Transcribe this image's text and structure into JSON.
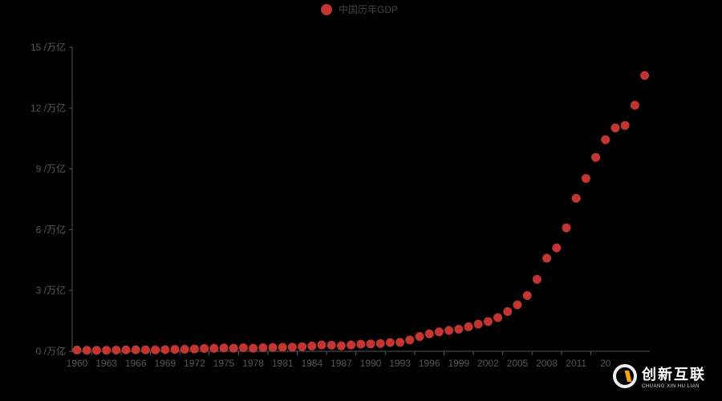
{
  "chart_data": {
    "type": "scatter",
    "title": "",
    "legend": [
      "中国历年GDP"
    ],
    "legend_position": "top-center",
    "xlabel": "",
    "ylabel": "",
    "y_unit": " /万亿",
    "ylim": [
      0,
      15
    ],
    "yticks": [
      "0 /万亿",
      "3 /万亿",
      "6 /万亿",
      "9 /万亿",
      "12 /万亿",
      "15 /万亿"
    ],
    "xticks_visible": [
      "1960",
      "1963",
      "1966",
      "1969",
      "1972",
      "1975",
      "1978",
      "1981",
      "1984",
      "1987",
      "1990",
      "1993",
      "1996",
      "1999",
      "2002",
      "2005",
      "2008",
      "2011",
      "20"
    ],
    "grid": false,
    "color": "#c23531",
    "x": [
      1960,
      1961,
      1962,
      1963,
      1964,
      1965,
      1966,
      1967,
      1968,
      1969,
      1970,
      1971,
      1972,
      1973,
      1974,
      1975,
      1976,
      1977,
      1978,
      1979,
      1980,
      1981,
      1982,
      1983,
      1984,
      1985,
      1986,
      1987,
      1988,
      1989,
      1990,
      1991,
      1992,
      1993,
      1994,
      1995,
      1996,
      1997,
      1998,
      1999,
      2000,
      2001,
      2002,
      2003,
      2004,
      2005,
      2006,
      2007,
      2008,
      2009,
      2010,
      2011,
      2012,
      2013,
      2014,
      2015,
      2016,
      2017,
      2018
    ],
    "values": [
      0.06,
      0.05,
      0.047,
      0.05,
      0.059,
      0.07,
      0.076,
      0.072,
      0.07,
      0.079,
      0.093,
      0.1,
      0.114,
      0.139,
      0.144,
      0.163,
      0.154,
      0.175,
      0.15,
      0.18,
      0.19,
      0.196,
      0.205,
      0.23,
      0.26,
      0.31,
      0.3,
      0.27,
      0.31,
      0.35,
      0.36,
      0.38,
      0.43,
      0.44,
      0.56,
      0.73,
      0.86,
      0.96,
      1.03,
      1.09,
      1.21,
      1.34,
      1.47,
      1.66,
      1.96,
      2.29,
      2.75,
      3.55,
      4.59,
      5.1,
      6.09,
      7.55,
      8.53,
      9.57,
      10.44,
      11.02,
      11.14,
      12.14,
      13.61
    ]
  },
  "legend": {
    "label": "中国历年GDP",
    "color": "#c23531"
  },
  "watermark": {
    "cn": "创新互联",
    "en": "CHUANG XIN HU LIAN"
  }
}
